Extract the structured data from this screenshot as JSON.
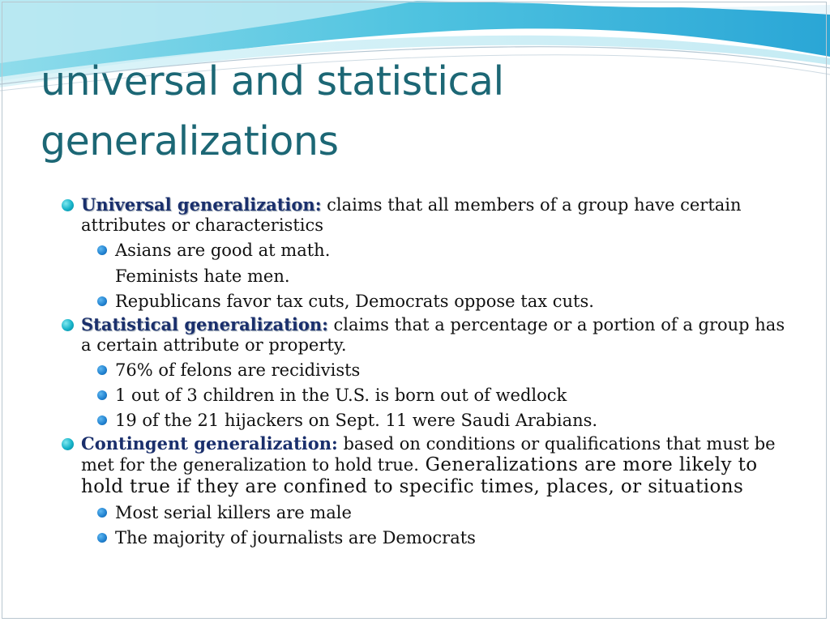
{
  "slide": {
    "title_lines": [
      "universal and statistical",
      "generalizations"
    ],
    "items": [
      {
        "term": "Universal generalization:",
        "text": " claims that all members of a group have certain attributes or characteristics",
        "subitems": [
          {
            "text": "Asians are good at math.",
            "bullet": true
          },
          {
            "text": "Feminists hate men.",
            "bullet": false
          },
          {
            "text": "Republicans favor tax cuts, Democrats oppose tax cuts.",
            "bullet": true
          }
        ]
      },
      {
        "term": "Statistical generalization:",
        "text": " claims that a percentage or a portion of a group has a certain attribute or property.",
        "subitems": [
          {
            "text": "76% of felons are recidivists",
            "bullet": true
          },
          {
            "text": "1 out of 3 children in the U.S. is born out of wedlock",
            "bullet": true
          },
          {
            "text": "19 of the 21 hijackers on Sept. 11 were Saudi Arabians.",
            "bullet": true
          }
        ]
      },
      {
        "term": "Contingent generalization:",
        "text": " based on conditions or qualifications that must be met for the generalization to hold true.",
        "text_extra": " Generalizations are more likely to hold true if they are confined to specific times, places, or situations",
        "subitems": [
          {
            "text": "Most serial killers are male",
            "bullet": true
          },
          {
            "text": "The majority of journalists are Democrats",
            "bullet": true
          }
        ]
      }
    ]
  },
  "colors": {
    "title": "#1c6775",
    "term": "#1a2f6c",
    "bullet_main": "#14b2c8",
    "bullet_sub": "#1f80cf",
    "wave": "#5fc6e0"
  },
  "icons": {
    "level1_bullet": "bullet-dot-cyan-icon",
    "level2_bullet": "bullet-dot-blue-icon"
  }
}
